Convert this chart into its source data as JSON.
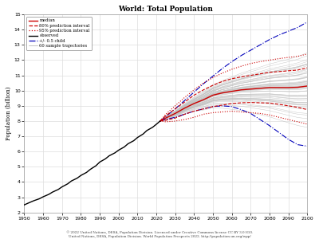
{
  "title": "World: Total Population",
  "ylabel": "Population (billion)",
  "xlim": [
    1950,
    2100
  ],
  "ylim": [
    2,
    15
  ],
  "yticks": [
    2,
    3,
    4,
    5,
    6,
    7,
    8,
    9,
    10,
    11,
    12,
    13,
    14,
    15
  ],
  "xticks": [
    1950,
    1960,
    1970,
    1980,
    1990,
    2000,
    2010,
    2020,
    2030,
    2040,
    2050,
    2060,
    2070,
    2080,
    2090,
    2100
  ],
  "bg_color": "#ffffff",
  "plot_bg_color": "#ffffff",
  "footer_line1": "© 2022 United Nations, DESA, Population Division. Licensed under Creative Commons license CC BY 3.0 IGO.",
  "footer_line2": "United Nations, DESA, Population Division. World Population Prospects 2022. http://population.un.org/wpp/",
  "legend_items": [
    {
      "label": "median",
      "color": "#cc0000",
      "linestyle": "-",
      "linewidth": 1.0
    },
    {
      "label": "80% prediction interval",
      "color": "#cc0000",
      "linestyle": "--",
      "linewidth": 0.9
    },
    {
      "label": "95% prediction interval",
      "color": "#cc0000",
      "linestyle": ":",
      "linewidth": 0.9
    },
    {
      "label": "observed",
      "color": "#000000",
      "linestyle": "-",
      "linewidth": 1.0
    },
    {
      "label": "+/- 0.5 child",
      "color": "#0000bb",
      "linestyle": "-.",
      "linewidth": 0.9
    },
    {
      "label": "60 sample trajectories",
      "color": "#aaaaaa",
      "linestyle": "-",
      "linewidth": 0.5
    }
  ],
  "observed_years": [
    1950,
    1952,
    1955,
    1958,
    1960,
    1963,
    1965,
    1968,
    1970,
    1973,
    1975,
    1978,
    1980,
    1983,
    1985,
    1988,
    1990,
    1993,
    1995,
    1998,
    2000,
    2003,
    2005,
    2008,
    2010,
    2013,
    2015,
    2018,
    2020,
    2022
  ],
  "observed_values": [
    2.5,
    2.61,
    2.77,
    2.9,
    3.03,
    3.19,
    3.34,
    3.51,
    3.68,
    3.88,
    4.07,
    4.25,
    4.43,
    4.63,
    4.83,
    5.07,
    5.31,
    5.52,
    5.72,
    5.91,
    6.09,
    6.3,
    6.51,
    6.71,
    6.92,
    7.15,
    7.38,
    7.59,
    7.79,
    8.0
  ],
  "proj_years": [
    2022,
    2025,
    2030,
    2035,
    2040,
    2045,
    2050,
    2055,
    2060,
    2065,
    2070,
    2075,
    2080,
    2085,
    2090,
    2095,
    2100
  ],
  "median": [
    8.0,
    8.2,
    8.5,
    8.85,
    9.15,
    9.4,
    9.7,
    9.85,
    9.95,
    10.05,
    10.1,
    10.15,
    10.2,
    10.2,
    10.2,
    10.22,
    10.3
  ],
  "pi80_upper": [
    8.0,
    8.35,
    8.8,
    9.25,
    9.7,
    10.05,
    10.35,
    10.6,
    10.78,
    10.9,
    11.0,
    11.1,
    11.2,
    11.25,
    11.3,
    11.35,
    11.5
  ],
  "pi80_lower": [
    8.0,
    8.05,
    8.2,
    8.45,
    8.65,
    8.8,
    8.95,
    9.05,
    9.15,
    9.2,
    9.22,
    9.2,
    9.18,
    9.1,
    9.0,
    8.9,
    8.75
  ],
  "pi95_upper": [
    8.0,
    8.45,
    9.0,
    9.55,
    10.05,
    10.5,
    10.85,
    11.15,
    11.4,
    11.6,
    11.78,
    11.9,
    12.0,
    12.1,
    12.18,
    12.25,
    12.4
  ],
  "pi95_lower": [
    8.0,
    7.95,
    8.0,
    8.1,
    8.25,
    8.45,
    8.55,
    8.6,
    8.65,
    8.6,
    8.55,
    8.5,
    8.4,
    8.25,
    8.1,
    7.95,
    7.8
  ],
  "blue_upper": [
    8.0,
    8.3,
    8.8,
    9.35,
    9.9,
    10.45,
    10.95,
    11.45,
    11.9,
    12.3,
    12.65,
    13.0,
    13.35,
    13.65,
    13.9,
    14.15,
    14.5
  ],
  "blue_lower": [
    8.0,
    8.1,
    8.25,
    8.45,
    8.65,
    8.8,
    8.95,
    9.0,
    8.95,
    8.75,
    8.5,
    8.1,
    7.7,
    7.25,
    6.8,
    6.45,
    6.35
  ]
}
